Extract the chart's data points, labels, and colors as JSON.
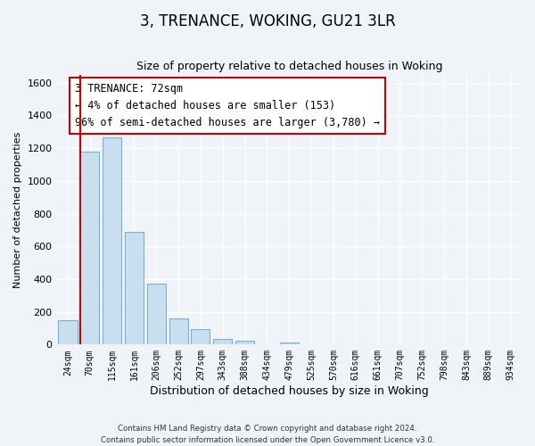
{
  "title": "3, TRENANCE, WOKING, GU21 3LR",
  "subtitle": "Size of property relative to detached houses in Woking",
  "xlabel": "Distribution of detached houses by size in Woking",
  "ylabel": "Number of detached properties",
  "bar_color": "#c8dff0",
  "bar_edge_color": "#7aafd4",
  "categories": [
    "24sqm",
    "70sqm",
    "115sqm",
    "161sqm",
    "206sqm",
    "252sqm",
    "297sqm",
    "343sqm",
    "388sqm",
    "434sqm",
    "479sqm",
    "525sqm",
    "570sqm",
    "616sqm",
    "661sqm",
    "707sqm",
    "752sqm",
    "798sqm",
    "843sqm",
    "889sqm",
    "934sqm"
  ],
  "values": [
    150,
    1180,
    1265,
    690,
    375,
    160,
    93,
    35,
    22,
    0,
    10,
    0,
    0,
    0,
    0,
    0,
    0,
    0,
    0,
    0,
    0
  ],
  "ylim": [
    0,
    1650
  ],
  "yticks": [
    0,
    200,
    400,
    600,
    800,
    1000,
    1200,
    1400,
    1600
  ],
  "marker_color": "#cc0000",
  "annotation_title": "3 TRENANCE: 72sqm",
  "annotation_line1": "← 4% of detached houses are smaller (153)",
  "annotation_line2": "96% of semi-detached houses are larger (3,780) →",
  "footnote1": "Contains HM Land Registry data © Crown copyright and database right 2024.",
  "footnote2": "Contains public sector information licensed under the Open Government Licence v3.0.",
  "bg_color": "#f0f4f8",
  "grid_color": "#ffffff"
}
